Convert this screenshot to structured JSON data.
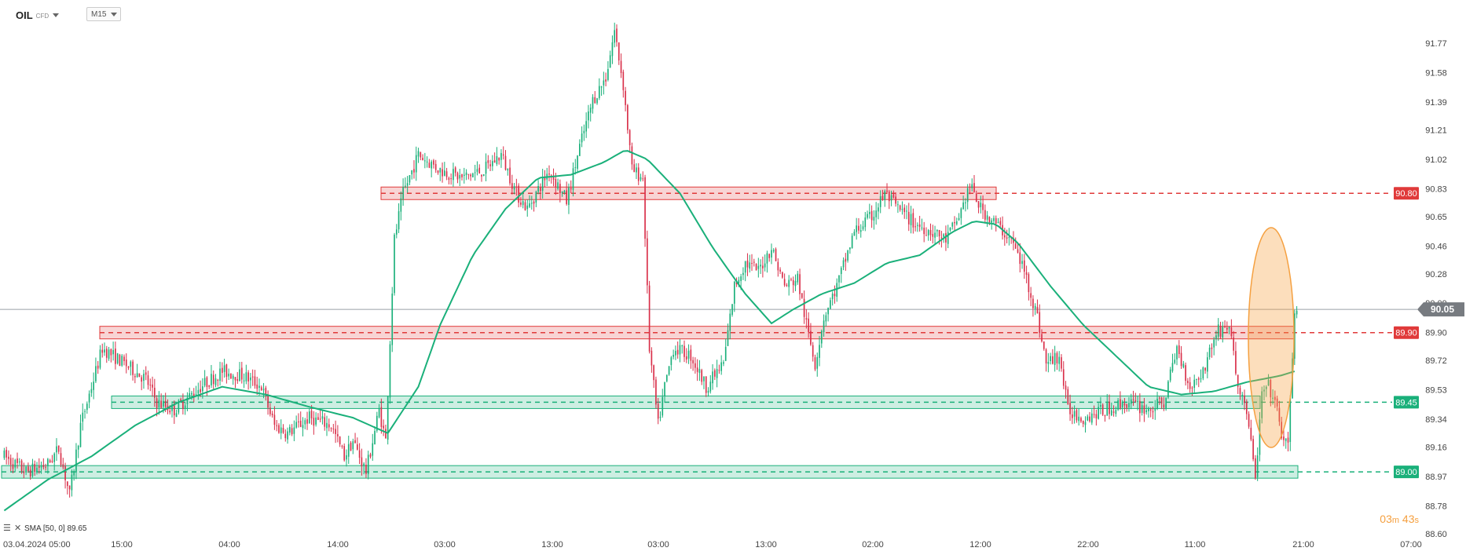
{
  "toolbar": {
    "symbol": "OIL",
    "symbol_type": "CFD",
    "timeframe": "M15"
  },
  "indicator": {
    "label": "SMA [50, 0] 89.65",
    "color": "#1ab07a"
  },
  "countdown": {
    "minutes": "03",
    "m_unit": "m",
    "seconds": "43",
    "s_unit": "s"
  },
  "colors": {
    "up": "#1ab07a",
    "down": "#d9304a",
    "resistance": "#e03a3a",
    "support": "#1ab07a",
    "current_price": "#777b80",
    "highlight": "#f5a040"
  },
  "chart_data": {
    "type": "candlestick",
    "timeframe": "M15",
    "ylim": [
      88.6,
      91.95
    ],
    "y_ticks": [
      "91.77",
      "91.58",
      "91.39",
      "91.21",
      "91.02",
      "90.83",
      "90.65",
      "90.46",
      "90.28",
      "90.09",
      "89.90",
      "89.72",
      "89.53",
      "89.34",
      "89.16",
      "88.97",
      "88.78",
      "88.60"
    ],
    "x_ticks": [
      "03.04.2024 05:00",
      "15:00",
      "04:00",
      "14:00",
      "03:00",
      "13:00",
      "03:00",
      "13:00",
      "02:00",
      "12:00",
      "22:00",
      "11:00",
      "21:00",
      "07:00"
    ],
    "current_price": "90.05",
    "levels": [
      {
        "price": "90.80",
        "kind": "resistance"
      },
      {
        "price": "89.90",
        "kind": "resistance"
      },
      {
        "price": "89.45",
        "kind": "support"
      },
      {
        "price": "89.00",
        "kind": "support"
      }
    ],
    "price_path": [
      {
        "i": 0,
        "p": 89.1
      },
      {
        "i": 10,
        "p": 89.0
      },
      {
        "i": 20,
        "p": 89.05
      },
      {
        "i": 25,
        "p": 89.15
      },
      {
        "i": 30,
        "p": 88.85
      },
      {
        "i": 35,
        "p": 89.3
      },
      {
        "i": 45,
        "p": 89.8
      },
      {
        "i": 55,
        "p": 89.7
      },
      {
        "i": 65,
        "p": 89.6
      },
      {
        "i": 70,
        "p": 89.45
      },
      {
        "i": 78,
        "p": 89.4
      },
      {
        "i": 90,
        "p": 89.55
      },
      {
        "i": 100,
        "p": 89.65
      },
      {
        "i": 110,
        "p": 89.62
      },
      {
        "i": 118,
        "p": 89.55
      },
      {
        "i": 124,
        "p": 89.3
      },
      {
        "i": 130,
        "p": 89.25
      },
      {
        "i": 140,
        "p": 89.35
      },
      {
        "i": 150,
        "p": 89.3
      },
      {
        "i": 156,
        "p": 89.1
      },
      {
        "i": 160,
        "p": 89.2
      },
      {
        "i": 166,
        "p": 89.0
      },
      {
        "i": 172,
        "p": 89.4
      },
      {
        "i": 175,
        "p": 89.2
      },
      {
        "i": 179,
        "p": 90.5
      },
      {
        "i": 183,
        "p": 90.8
      },
      {
        "i": 190,
        "p": 91.05
      },
      {
        "i": 200,
        "p": 90.95
      },
      {
        "i": 210,
        "p": 90.9
      },
      {
        "i": 220,
        "p": 90.95
      },
      {
        "i": 228,
        "p": 91.05
      },
      {
        "i": 235,
        "p": 90.8
      },
      {
        "i": 240,
        "p": 90.7
      },
      {
        "i": 250,
        "p": 90.95
      },
      {
        "i": 258,
        "p": 90.75
      },
      {
        "i": 264,
        "p": 91.1
      },
      {
        "i": 270,
        "p": 91.4
      },
      {
        "i": 276,
        "p": 91.55
      },
      {
        "i": 280,
        "p": 91.85
      },
      {
        "i": 284,
        "p": 91.5
      },
      {
        "i": 288,
        "p": 90.95
      },
      {
        "i": 293,
        "p": 90.9
      },
      {
        "i": 296,
        "p": 89.8
      },
      {
        "i": 300,
        "p": 89.3
      },
      {
        "i": 303,
        "p": 89.55
      },
      {
        "i": 307,
        "p": 89.8
      },
      {
        "i": 315,
        "p": 89.75
      },
      {
        "i": 322,
        "p": 89.55
      },
      {
        "i": 330,
        "p": 89.7
      },
      {
        "i": 335,
        "p": 90.2
      },
      {
        "i": 340,
        "p": 90.35
      },
      {
        "i": 346,
        "p": 90.3
      },
      {
        "i": 352,
        "p": 90.45
      },
      {
        "i": 358,
        "p": 90.2
      },
      {
        "i": 364,
        "p": 90.25
      },
      {
        "i": 368,
        "p": 89.95
      },
      {
        "i": 372,
        "p": 89.7
      },
      {
        "i": 376,
        "p": 90.0
      },
      {
        "i": 382,
        "p": 90.2
      },
      {
        "i": 390,
        "p": 90.55
      },
      {
        "i": 398,
        "p": 90.65
      },
      {
        "i": 404,
        "p": 90.8
      },
      {
        "i": 410,
        "p": 90.7
      },
      {
        "i": 418,
        "p": 90.6
      },
      {
        "i": 426,
        "p": 90.55
      },
      {
        "i": 432,
        "p": 90.5
      },
      {
        "i": 438,
        "p": 90.65
      },
      {
        "i": 443,
        "p": 90.85
      },
      {
        "i": 448,
        "p": 90.7
      },
      {
        "i": 455,
        "p": 90.6
      },
      {
        "i": 462,
        "p": 90.5
      },
      {
        "i": 468,
        "p": 90.3
      },
      {
        "i": 474,
        "p": 90.0
      },
      {
        "i": 478,
        "p": 89.7
      },
      {
        "i": 484,
        "p": 89.75
      },
      {
        "i": 488,
        "p": 89.4
      },
      {
        "i": 495,
        "p": 89.35
      },
      {
        "i": 505,
        "p": 89.4
      },
      {
        "i": 515,
        "p": 89.45
      },
      {
        "i": 525,
        "p": 89.4
      },
      {
        "i": 532,
        "p": 89.45
      },
      {
        "i": 538,
        "p": 89.8
      },
      {
        "i": 544,
        "p": 89.55
      },
      {
        "i": 550,
        "p": 89.65
      },
      {
        "i": 556,
        "p": 89.9
      },
      {
        "i": 562,
        "p": 89.95
      },
      {
        "i": 566,
        "p": 89.55
      },
      {
        "i": 570,
        "p": 89.4
      },
      {
        "i": 574,
        "p": 88.95
      },
      {
        "i": 577,
        "p": 89.5
      },
      {
        "i": 580,
        "p": 89.55
      },
      {
        "i": 583,
        "p": 89.45
      },
      {
        "i": 586,
        "p": 89.25
      },
      {
        "i": 589,
        "p": 89.15
      },
      {
        "i": 592,
        "p": 90.05
      }
    ],
    "sma_path": [
      {
        "i": 0,
        "p": 88.75
      },
      {
        "i": 20,
        "p": 88.95
      },
      {
        "i": 40,
        "p": 89.1
      },
      {
        "i": 60,
        "p": 89.3
      },
      {
        "i": 80,
        "p": 89.45
      },
      {
        "i": 100,
        "p": 89.55
      },
      {
        "i": 120,
        "p": 89.5
      },
      {
        "i": 140,
        "p": 89.42
      },
      {
        "i": 160,
        "p": 89.35
      },
      {
        "i": 176,
        "p": 89.25
      },
      {
        "i": 190,
        "p": 89.55
      },
      {
        "i": 200,
        "p": 89.95
      },
      {
        "i": 215,
        "p": 90.4
      },
      {
        "i": 230,
        "p": 90.7
      },
      {
        "i": 245,
        "p": 90.9
      },
      {
        "i": 260,
        "p": 90.92
      },
      {
        "i": 275,
        "p": 91.0
      },
      {
        "i": 285,
        "p": 91.08
      },
      {
        "i": 295,
        "p": 91.02
      },
      {
        "i": 310,
        "p": 90.8
      },
      {
        "i": 325,
        "p": 90.45
      },
      {
        "i": 340,
        "p": 90.15
      },
      {
        "i": 352,
        "p": 89.96
      },
      {
        "i": 362,
        "p": 90.05
      },
      {
        "i": 375,
        "p": 90.15
      },
      {
        "i": 390,
        "p": 90.22
      },
      {
        "i": 405,
        "p": 90.35
      },
      {
        "i": 420,
        "p": 90.4
      },
      {
        "i": 435,
        "p": 90.55
      },
      {
        "i": 445,
        "p": 90.62
      },
      {
        "i": 455,
        "p": 90.6
      },
      {
        "i": 465,
        "p": 90.48
      },
      {
        "i": 480,
        "p": 90.2
      },
      {
        "i": 495,
        "p": 89.95
      },
      {
        "i": 510,
        "p": 89.75
      },
      {
        "i": 525,
        "p": 89.55
      },
      {
        "i": 540,
        "p": 89.5
      },
      {
        "i": 555,
        "p": 89.52
      },
      {
        "i": 570,
        "p": 89.58
      },
      {
        "i": 585,
        "p": 89.62
      },
      {
        "i": 592,
        "p": 89.65
      }
    ],
    "n_candles": 594
  }
}
